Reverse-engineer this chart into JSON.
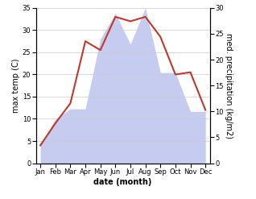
{
  "months": [
    "Jan",
    "Feb",
    "Mar",
    "Apr",
    "May",
    "Jun",
    "Jul",
    "Aug",
    "Sep",
    "Oct",
    "Nov",
    "Dec"
  ],
  "temperature": [
    4.0,
    9.0,
    13.5,
    27.5,
    25.5,
    33.0,
    32.0,
    33.0,
    28.5,
    20.0,
    20.5,
    12.0
  ],
  "precipitation": [
    3.5,
    8.5,
    10.5,
    10.5,
    24.0,
    29.0,
    23.0,
    30.0,
    17.5,
    17.5,
    10.0,
    10.0
  ],
  "temp_color": "#c0392b",
  "precip_fill_color": "#c5ccf0",
  "temp_ylim": [
    0,
    35
  ],
  "precip_ylim": [
    0,
    30
  ],
  "temp_yticks": [
    0,
    5,
    10,
    15,
    20,
    25,
    30,
    35
  ],
  "precip_yticks": [
    0,
    5,
    10,
    15,
    20,
    25,
    30
  ],
  "xlabel": "date (month)",
  "ylabel_left": "max temp (C)",
  "ylabel_right": "med. precipitation (kg/m2)",
  "bg_color": "#ffffff",
  "grid_color": "#cccccc",
  "title_fontsize": 7,
  "label_fontsize": 7,
  "tick_fontsize": 6,
  "xlabel_fontsize": 7
}
